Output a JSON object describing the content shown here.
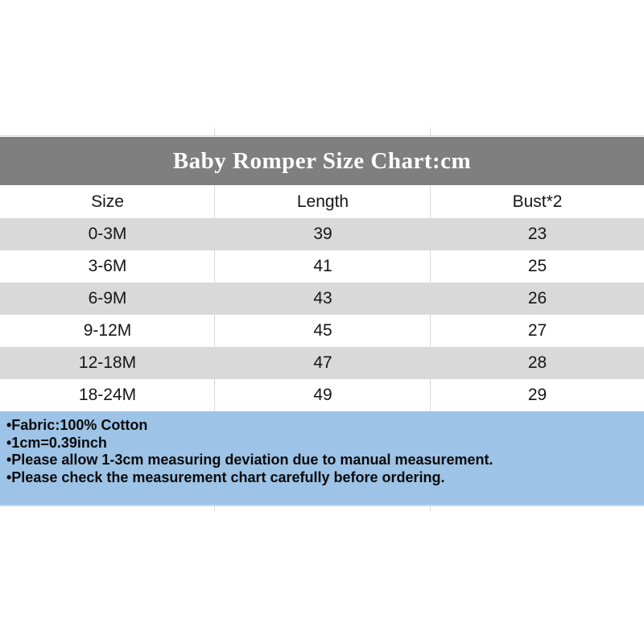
{
  "title": "Baby Romper Size Chart:cm",
  "chart_data": {
    "type": "table",
    "title": "Baby Romper Size Chart:cm",
    "unit": "cm",
    "columns": [
      "Size",
      "Length",
      "Bust*2"
    ],
    "rows": [
      [
        "0-3M",
        39,
        23
      ],
      [
        "3-6M",
        41,
        25
      ],
      [
        "6-9M",
        43,
        26
      ],
      [
        "9-12M",
        45,
        27
      ],
      [
        "12-18M",
        47,
        28
      ],
      [
        "18-24M",
        49,
        29
      ]
    ]
  },
  "notes": {
    "lines": [
      "•Fabric:100% Cotton",
      "•1cm=0.39inch",
      "•Please allow 1-3cm measuring deviation due to manual measurement.",
      "•Please check the measurement chart carefully before ordering."
    ]
  },
  "colors": {
    "title_band_bg": "#7f7f7f",
    "title_text": "#ffffff",
    "row_alt_bg": "#d9d9d9",
    "row_bg": "#ffffff",
    "divider": "#d9d9d9",
    "notes_bg": "#9dc3e6",
    "body_text": "#161616"
  }
}
